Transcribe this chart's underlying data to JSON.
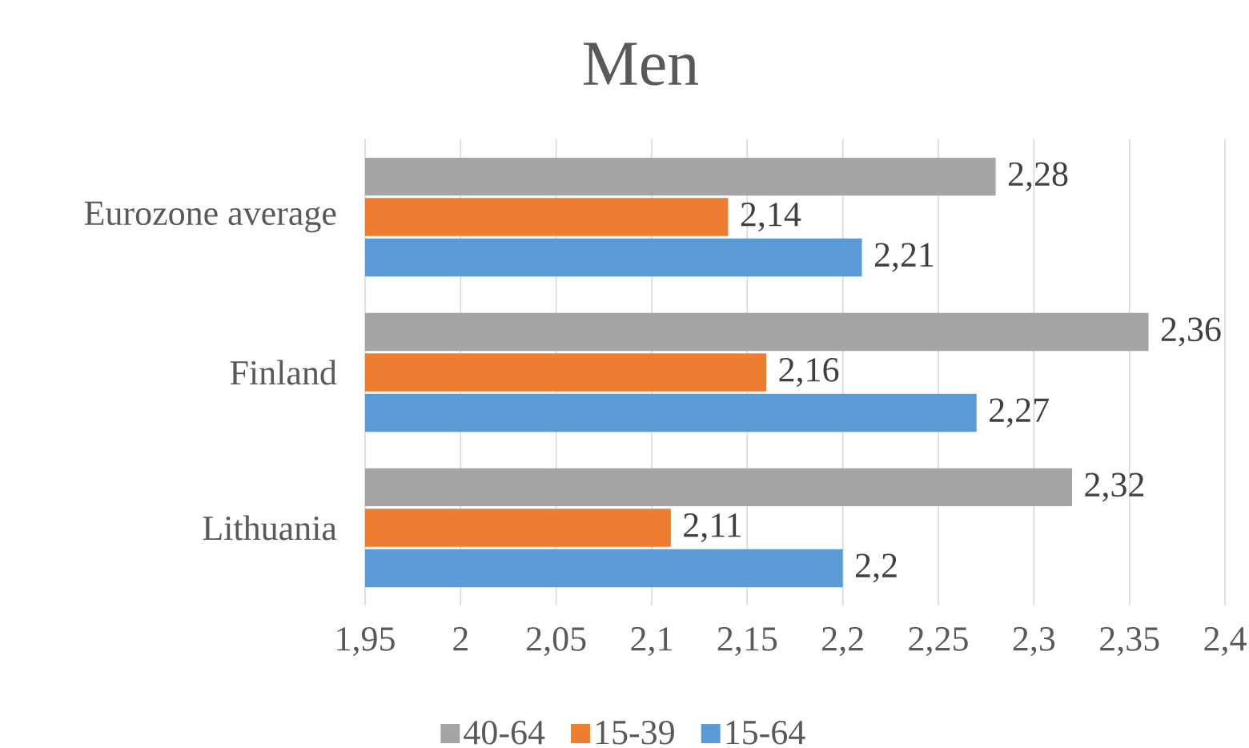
{
  "chart_data": {
    "type": "bar",
    "orientation": "horizontal",
    "title": "Men",
    "categories": [
      "Eurozone average",
      "Finland",
      "Lithuania"
    ],
    "series": [
      {
        "name": "40-64",
        "color": "#a5a5a5",
        "values": [
          2.28,
          2.36,
          2.32
        ],
        "value_labels": [
          "2,28",
          "2,36",
          "2,32"
        ]
      },
      {
        "name": "15-39",
        "color": "#ed7d31",
        "values": [
          2.14,
          2.16,
          2.11
        ],
        "value_labels": [
          "2,14",
          "2,16",
          "2,11"
        ]
      },
      {
        "name": "15-64",
        "color": "#5b9bd5",
        "values": [
          2.21,
          2.27,
          2.2
        ],
        "value_labels": [
          "2,21",
          "2,27",
          "2,2"
        ]
      }
    ],
    "xlim": [
      1.95,
      2.4
    ],
    "xticks": [
      {
        "value": 1.95,
        "label": "1,95"
      },
      2,
      {
        "value": 2.05,
        "label": "2,05"
      },
      {
        "value": 2.1,
        "label": "2,1"
      },
      {
        "value": 2.15,
        "label": "2,15"
      },
      {
        "value": 2.2,
        "label": "2,2"
      },
      {
        "value": 2.25,
        "label": "2,25"
      },
      {
        "value": 2.3,
        "label": "2,3"
      },
      {
        "value": 2.35,
        "label": "2,35"
      },
      {
        "value": 2.4,
        "label": "2,4"
      }
    ],
    "grid": "x",
    "legend": "bottom"
  }
}
